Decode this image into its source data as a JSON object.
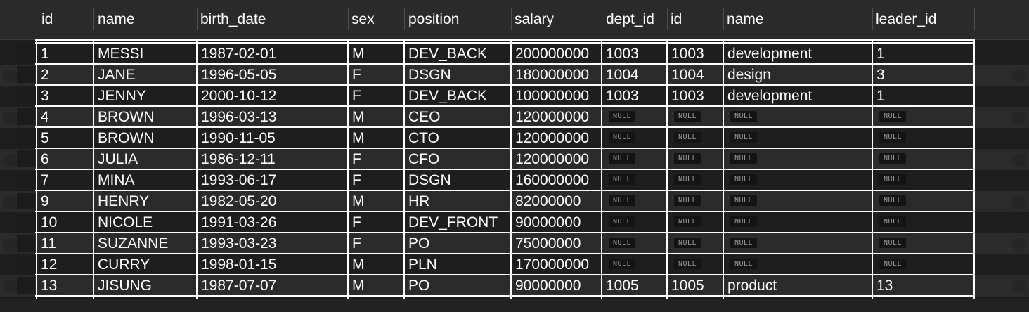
{
  "columns": [
    "id",
    "name",
    "birth_date",
    "sex",
    "position",
    "salary",
    "dept_id",
    "id",
    "name",
    "leader_id"
  ],
  "null_label": "NULL",
  "rows": [
    [
      "1",
      "MESSI",
      "1987-02-01",
      "M",
      "DEV_BACK",
      "200000000",
      "1003",
      "1003",
      "development",
      "1"
    ],
    [
      "2",
      "JANE",
      "1996-05-05",
      "F",
      "DSGN",
      "180000000",
      "1004",
      "1004",
      "design",
      "3"
    ],
    [
      "3",
      "JENNY",
      "2000-10-12",
      "F",
      "DEV_BACK",
      "100000000",
      "1003",
      "1003",
      "development",
      "1"
    ],
    [
      "4",
      "BROWN",
      "1996-03-13",
      "M",
      "CEO",
      "120000000",
      null,
      null,
      null,
      null
    ],
    [
      "5",
      "BROWN",
      "1990-11-05",
      "M",
      "CTO",
      "120000000",
      null,
      null,
      null,
      null
    ],
    [
      "6",
      "JULIA",
      "1986-12-11",
      "F",
      "CFO",
      "120000000",
      null,
      null,
      null,
      null
    ],
    [
      "7",
      "MINA",
      "1993-06-17",
      "F",
      "DSGN",
      "160000000",
      null,
      null,
      null,
      null
    ],
    [
      "9",
      "HENRY",
      "1982-05-20",
      "M",
      "HR",
      "82000000",
      null,
      null,
      null,
      null
    ],
    [
      "10",
      "NICOLE",
      "1991-03-26",
      "F",
      "DEV_FRONT",
      "90000000",
      null,
      null,
      null,
      null
    ],
    [
      "11",
      "SUZANNE",
      "1993-03-23",
      "F",
      "PO",
      "75000000",
      null,
      null,
      null,
      null
    ],
    [
      "12",
      "CURRY",
      "1998-01-15",
      "M",
      "PLN",
      "170000000",
      null,
      null,
      null,
      null
    ],
    [
      "13",
      "JISUNG",
      "1987-07-07",
      "M",
      "PO",
      "90000000",
      "1005",
      "1005",
      "product",
      "13"
    ]
  ]
}
